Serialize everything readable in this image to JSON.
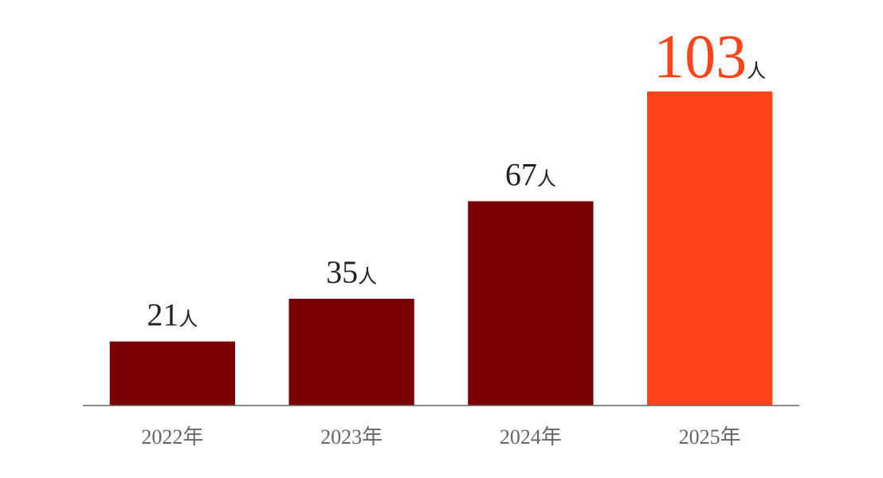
{
  "chart_data": {
    "type": "bar",
    "categories": [
      "2022年",
      "2023年",
      "2024年",
      "2025年"
    ],
    "values": [
      21,
      35,
      67,
      103
    ],
    "value_labels": [
      "21人",
      "35人",
      "67人",
      "103人"
    ],
    "colors": [
      "#7a0006",
      "#7a0006",
      "#7a0006",
      "#ff4419"
    ],
    "ylim": [
      0,
      110
    ]
  }
}
